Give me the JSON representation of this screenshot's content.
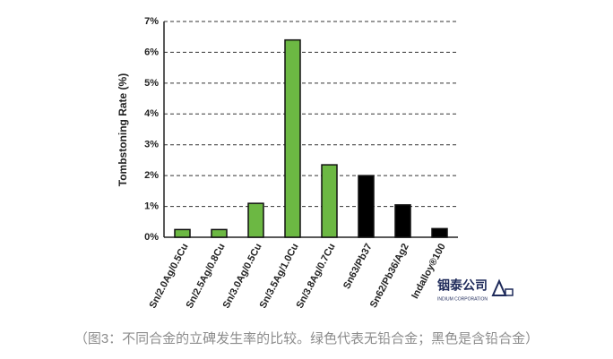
{
  "chart_data": {
    "type": "bar",
    "y_label": "Tombstoning Rate (%)",
    "categories": [
      "Sn/2.0Ag/0.5Cu",
      "Sn/2.5Ag/0.8Cu",
      "Sn/3.0Ag/0.5Cu",
      "Sn/3.5Ag/1.0Cu",
      "Sn/3.8Ag/0.7Cu",
      "Sn63/Pb37",
      "Sn62/Pb36/Ag2",
      "Indalloy®100"
    ],
    "values": [
      0.25,
      0.25,
      1.1,
      6.4,
      2.35,
      2.0,
      1.05,
      0.28
    ],
    "colors": [
      "#6cb843",
      "#6cb843",
      "#6cb843",
      "#6cb843",
      "#6cb843",
      "#000000",
      "#000000",
      "#000000"
    ],
    "ylim": [
      0,
      7
    ],
    "yticks": [
      {
        "value": 0,
        "label": "0%"
      },
      {
        "value": 1,
        "label": "1%"
      },
      {
        "value": 2,
        "label": "2%"
      },
      {
        "value": 3,
        "label": "3%"
      },
      {
        "value": 4,
        "label": "4%"
      },
      {
        "value": 5,
        "label": "5%"
      },
      {
        "value": 6,
        "label": "6%"
      },
      {
        "value": 7,
        "label": "7%"
      }
    ],
    "grid": true
  },
  "logo": {
    "name": "铟泰公司",
    "subtitle": "INDIUM CORPORATION"
  },
  "caption": "（图3：不同合金的立碑发生率的比较。绿色代表无铅合金；黑色是含铅合金）"
}
